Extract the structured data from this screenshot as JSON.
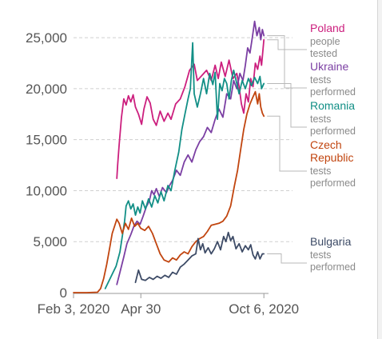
{
  "chart_data": {
    "type": "line",
    "title": "",
    "xlabel": "",
    "ylabel": "",
    "ylim": [
      0,
      26500
    ],
    "xlim": [
      "2020-02-03",
      "2020-10-12"
    ],
    "yticks": [
      0,
      5000,
      10000,
      15000,
      20000,
      25000
    ],
    "ytick_labels": [
      "0",
      "5,000",
      "10,000",
      "15,000",
      "20,000",
      "25,000"
    ],
    "xticks": [
      "2020-02-03",
      "2020-04-30",
      "2020-10-06"
    ],
    "xtick_labels": [
      "Feb 3, 2020",
      "Apr 30",
      "Oct 6, 2020"
    ],
    "grid": "horizontal dashed",
    "legend": "direct labels at right",
    "series": [
      {
        "name": "Poland",
        "sub": [
          "people",
          "tested"
        ],
        "color": "#cc1f7e",
        "points": [
          [
            "2020-03-30",
            11200
          ],
          [
            "2020-03-31",
            12500
          ],
          [
            "2020-04-02",
            14500
          ],
          [
            "2020-04-05",
            17200
          ],
          [
            "2020-04-08",
            19000
          ],
          [
            "2020-04-11",
            18400
          ],
          [
            "2020-04-14",
            19300
          ],
          [
            "2020-04-17",
            18700
          ],
          [
            "2020-04-20",
            19400
          ],
          [
            "2020-04-23",
            18200
          ],
          [
            "2020-04-27",
            17500
          ],
          [
            "2020-05-01",
            16500
          ],
          [
            "2020-05-04",
            18000
          ],
          [
            "2020-05-08",
            19200
          ],
          [
            "2020-05-12",
            18600
          ],
          [
            "2020-05-16",
            17000
          ],
          [
            "2020-05-20",
            16400
          ],
          [
            "2020-05-25",
            17800
          ],
          [
            "2020-05-30",
            16800
          ],
          [
            "2020-06-04",
            17600
          ],
          [
            "2020-06-08",
            17000
          ],
          [
            "2020-06-14",
            18500
          ],
          [
            "2020-06-20",
            19000
          ],
          [
            "2020-06-26",
            20200
          ],
          [
            "2020-07-02",
            21800
          ],
          [
            "2020-07-08",
            22400
          ],
          [
            "2020-07-12",
            20800
          ],
          [
            "2020-07-18",
            21300
          ],
          [
            "2020-07-24",
            21800
          ],
          [
            "2020-07-30",
            20800
          ],
          [
            "2020-08-04",
            22300
          ],
          [
            "2020-08-08",
            21000
          ],
          [
            "2020-08-12",
            22600
          ],
          [
            "2020-08-17",
            21200
          ],
          [
            "2020-08-22",
            22800
          ],
          [
            "2020-08-27",
            21000
          ],
          [
            "2020-09-01",
            21500
          ],
          [
            "2020-09-04",
            20200
          ],
          [
            "2020-09-07",
            18500
          ],
          [
            "2020-09-10",
            17600
          ],
          [
            "2020-09-13",
            19500
          ],
          [
            "2020-09-16",
            18700
          ],
          [
            "2020-09-19",
            21000
          ],
          [
            "2020-09-22",
            20200
          ],
          [
            "2020-09-25",
            22500
          ],
          [
            "2020-09-28",
            21900
          ],
          [
            "2020-10-01",
            23200
          ],
          [
            "2020-10-03",
            22300
          ],
          [
            "2020-10-06",
            24800
          ]
        ]
      },
      {
        "name": "Ukraine",
        "sub": [
          "tests",
          "performed"
        ],
        "color": "#7b3fa3",
        "points": [
          [
            "2020-03-30",
            800
          ],
          [
            "2020-04-03",
            2000
          ],
          [
            "2020-04-08",
            3500
          ],
          [
            "2020-04-12",
            4800
          ],
          [
            "2020-04-17",
            5700
          ],
          [
            "2020-04-21",
            6500
          ],
          [
            "2020-04-25",
            7000
          ],
          [
            "2020-04-29",
            6700
          ],
          [
            "2020-05-03",
            7500
          ],
          [
            "2020-05-07",
            8400
          ],
          [
            "2020-05-11",
            9000
          ],
          [
            "2020-05-14",
            10000
          ],
          [
            "2020-05-17",
            9600
          ],
          [
            "2020-05-20",
            10200
          ],
          [
            "2020-05-24",
            9400
          ],
          [
            "2020-05-28",
            10300
          ],
          [
            "2020-06-02",
            9800
          ],
          [
            "2020-06-06",
            10500
          ],
          [
            "2020-06-10",
            11000
          ],
          [
            "2020-06-15",
            12000
          ],
          [
            "2020-06-20",
            11500
          ],
          [
            "2020-06-25",
            12800
          ],
          [
            "2020-06-30",
            13500
          ],
          [
            "2020-07-05",
            12800
          ],
          [
            "2020-07-10",
            14000
          ],
          [
            "2020-07-15",
            14800
          ],
          [
            "2020-07-20",
            15300
          ],
          [
            "2020-07-25",
            16200
          ],
          [
            "2020-07-30",
            15700
          ],
          [
            "2020-08-04",
            17000
          ],
          [
            "2020-08-09",
            18000
          ],
          [
            "2020-08-14",
            17200
          ],
          [
            "2020-08-19",
            19500
          ],
          [
            "2020-08-24",
            19000
          ],
          [
            "2020-08-28",
            20800
          ],
          [
            "2020-09-01",
            20000
          ],
          [
            "2020-09-05",
            21500
          ],
          [
            "2020-09-09",
            20800
          ],
          [
            "2020-09-12",
            22300
          ],
          [
            "2020-09-15",
            24000
          ],
          [
            "2020-09-18",
            23500
          ],
          [
            "2020-09-21",
            25000
          ],
          [
            "2020-09-24",
            26600
          ],
          [
            "2020-09-27",
            25200
          ],
          [
            "2020-09-30",
            26000
          ],
          [
            "2020-10-02",
            24800
          ],
          [
            "2020-10-04",
            25800
          ],
          [
            "2020-10-06",
            25200
          ]
        ]
      },
      {
        "name": "Romania",
        "sub": [
          "tests",
          "performed"
        ],
        "color": "#128f86",
        "points": [
          [
            "2020-03-15",
            400
          ],
          [
            "2020-03-22",
            1500
          ],
          [
            "2020-03-29",
            2600
          ],
          [
            "2020-04-03",
            4000
          ],
          [
            "2020-04-06",
            5500
          ],
          [
            "2020-04-09",
            7000
          ],
          [
            "2020-04-11",
            8500
          ],
          [
            "2020-04-14",
            9000
          ],
          [
            "2020-04-17",
            8200
          ],
          [
            "2020-04-20",
            8700
          ],
          [
            "2020-04-23",
            7600
          ],
          [
            "2020-04-26",
            8400
          ],
          [
            "2020-04-29",
            7800
          ],
          [
            "2020-05-02",
            9000
          ],
          [
            "2020-05-06",
            8200
          ],
          [
            "2020-05-10",
            9200
          ],
          [
            "2020-05-14",
            8400
          ],
          [
            "2020-05-18",
            9500
          ],
          [
            "2020-05-22",
            8800
          ],
          [
            "2020-05-26",
            9900
          ],
          [
            "2020-05-30",
            9000
          ],
          [
            "2020-06-04",
            10500
          ],
          [
            "2020-06-08",
            10000
          ],
          [
            "2020-06-13",
            12000
          ],
          [
            "2020-06-18",
            13800
          ],
          [
            "2020-06-22",
            16000
          ],
          [
            "2020-06-26",
            17500
          ],
          [
            "2020-06-30",
            19000
          ],
          [
            "2020-07-03",
            20000
          ],
          [
            "2020-07-06",
            24500
          ],
          [
            "2020-07-08",
            19500
          ],
          [
            "2020-07-12",
            18200
          ],
          [
            "2020-07-16",
            19500
          ],
          [
            "2020-07-20",
            21000
          ],
          [
            "2020-07-24",
            19500
          ],
          [
            "2020-07-28",
            21500
          ],
          [
            "2020-08-01",
            20400
          ],
          [
            "2020-08-04",
            21600
          ],
          [
            "2020-08-07",
            17000
          ],
          [
            "2020-08-10",
            20500
          ],
          [
            "2020-08-13",
            19800
          ],
          [
            "2020-08-16",
            21000
          ],
          [
            "2020-08-19",
            20500
          ],
          [
            "2020-08-22",
            19000
          ],
          [
            "2020-08-25",
            20800
          ],
          [
            "2020-08-28",
            21800
          ],
          [
            "2020-09-01",
            20500
          ],
          [
            "2020-09-04",
            19500
          ],
          [
            "2020-09-08",
            20800
          ],
          [
            "2020-09-12",
            20000
          ],
          [
            "2020-09-16",
            21000
          ],
          [
            "2020-09-20",
            20300
          ],
          [
            "2020-09-24",
            21100
          ],
          [
            "2020-09-28",
            20500
          ],
          [
            "2020-10-01",
            21200
          ],
          [
            "2020-10-03",
            20000
          ],
          [
            "2020-10-06",
            20500
          ]
        ]
      },
      {
        "name": "Czech Republic",
        "sub": [
          "tests",
          "performed"
        ],
        "color": "#c1450f",
        "points": [
          [
            "2020-02-03",
            0
          ],
          [
            "2020-02-20",
            0
          ],
          [
            "2020-03-05",
            40
          ],
          [
            "2020-03-09",
            400
          ],
          [
            "2020-03-13",
            1400
          ],
          [
            "2020-03-17",
            2800
          ],
          [
            "2020-03-21",
            4500
          ],
          [
            "2020-03-24",
            5800
          ],
          [
            "2020-03-27",
            6500
          ],
          [
            "2020-03-30",
            7200
          ],
          [
            "2020-04-02",
            6800
          ],
          [
            "2020-04-06",
            5800
          ],
          [
            "2020-04-10",
            6800
          ],
          [
            "2020-04-14",
            6200
          ],
          [
            "2020-04-18",
            7300
          ],
          [
            "2020-04-22",
            6500
          ],
          [
            "2020-04-26",
            6800
          ],
          [
            "2020-04-30",
            6300
          ],
          [
            "2020-05-05",
            6100
          ],
          [
            "2020-05-10",
            6500
          ],
          [
            "2020-05-15",
            5800
          ],
          [
            "2020-05-20",
            4800
          ],
          [
            "2020-05-25",
            3800
          ],
          [
            "2020-05-30",
            3200
          ],
          [
            "2020-06-05",
            3000
          ],
          [
            "2020-06-10",
            3400
          ],
          [
            "2020-06-15",
            3200
          ],
          [
            "2020-06-20",
            3700
          ],
          [
            "2020-06-25",
            4000
          ],
          [
            "2020-06-30",
            3800
          ],
          [
            "2020-07-05",
            4500
          ],
          [
            "2020-07-10",
            5000
          ],
          [
            "2020-07-15",
            5300
          ],
          [
            "2020-07-20",
            5500
          ],
          [
            "2020-07-25",
            6000
          ],
          [
            "2020-07-30",
            6600
          ],
          [
            "2020-08-04",
            6700
          ],
          [
            "2020-08-09",
            6800
          ],
          [
            "2020-08-14",
            7000
          ],
          [
            "2020-08-19",
            7500
          ],
          [
            "2020-08-24",
            8500
          ],
          [
            "2020-08-29",
            10500
          ],
          [
            "2020-09-02",
            12000
          ],
          [
            "2020-09-06",
            14000
          ],
          [
            "2020-09-10",
            16000
          ],
          [
            "2020-09-14",
            17500
          ],
          [
            "2020-09-18",
            18500
          ],
          [
            "2020-09-22",
            19200
          ],
          [
            "2020-09-25",
            19700
          ],
          [
            "2020-09-28",
            18500
          ],
          [
            "2020-09-30",
            19500
          ],
          [
            "2020-10-02",
            18200
          ],
          [
            "2020-10-04",
            17600
          ],
          [
            "2020-10-06",
            17300
          ]
        ]
      },
      {
        "name": "Bulgaria",
        "sub": [
          "tests",
          "performed"
        ],
        "color": "#3d4b66",
        "points": [
          [
            "2020-04-23",
            1000
          ],
          [
            "2020-04-27",
            2200
          ],
          [
            "2020-05-01",
            1300
          ],
          [
            "2020-05-06",
            1200
          ],
          [
            "2020-05-11",
            1500
          ],
          [
            "2020-05-16",
            1300
          ],
          [
            "2020-05-21",
            1600
          ],
          [
            "2020-05-26",
            1400
          ],
          [
            "2020-05-31",
            1700
          ],
          [
            "2020-06-05",
            1500
          ],
          [
            "2020-06-10",
            2000
          ],
          [
            "2020-06-15",
            1800
          ],
          [
            "2020-06-20",
            2500
          ],
          [
            "2020-06-25",
            2800
          ],
          [
            "2020-06-30",
            3200
          ],
          [
            "2020-07-05",
            3600
          ],
          [
            "2020-07-10",
            3800
          ],
          [
            "2020-07-13",
            5300
          ],
          [
            "2020-07-16",
            4200
          ],
          [
            "2020-07-19",
            4800
          ],
          [
            "2020-07-22",
            3900
          ],
          [
            "2020-07-26",
            4400
          ],
          [
            "2020-07-30",
            3800
          ],
          [
            "2020-08-03",
            4300
          ],
          [
            "2020-08-07",
            5000
          ],
          [
            "2020-08-11",
            4200
          ],
          [
            "2020-08-15",
            5500
          ],
          [
            "2020-08-18",
            5000
          ],
          [
            "2020-08-21",
            5900
          ],
          [
            "2020-08-24",
            5100
          ],
          [
            "2020-08-27",
            5500
          ],
          [
            "2020-08-31",
            4300
          ],
          [
            "2020-09-04",
            4800
          ],
          [
            "2020-09-08",
            4000
          ],
          [
            "2020-09-12",
            4600
          ],
          [
            "2020-09-16",
            4200
          ],
          [
            "2020-09-19",
            4700
          ],
          [
            "2020-09-22",
            3700
          ],
          [
            "2020-09-25",
            3300
          ],
          [
            "2020-09-28",
            4000
          ],
          [
            "2020-10-01",
            3300
          ],
          [
            "2020-10-04",
            3800
          ],
          [
            "2020-10-06",
            3800
          ]
        ]
      }
    ]
  }
}
